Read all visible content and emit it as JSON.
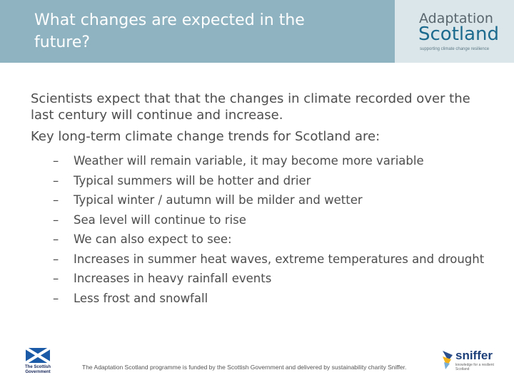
{
  "header": {
    "title": "What changes are expected in the future?",
    "brand_line1": "Adaptation",
    "brand_line2": "Scotland",
    "brand_tagline": "supporting climate change resilience",
    "colors": {
      "band": "#8fb3c0",
      "logo_panel": "#dbe6ea",
      "brand_blue": "#1c6b8e"
    }
  },
  "body": {
    "intro": "Scientists expect that that the changes in climate recorded over the last century will continue and increase.",
    "lead": "Key long-term climate change trends for Scotland are:",
    "bullet_marker": "–",
    "bullets": [
      "Weather will remain variable, it may become more variable",
      "Typical summers will be hotter and drier",
      "Typical winter / autumn will be milder and wetter",
      "Sea level will continue to rise",
      "We can also expect to see:",
      "Increases in summer heat waves, extreme temperatures and drought",
      "Increases in heavy rainfall events",
      "Less frost and snowfall"
    ]
  },
  "footer": {
    "credit": "The Adaptation Scotland programme is funded by the Scottish Government and delivered by sustainability charity Sniffer.",
    "gov_logo_text_line1": "The Scottish",
    "gov_logo_text_line2": "Government",
    "sniffer_name": "sniffer",
    "sniffer_tagline": "knowledge for a resilient Scotland"
  }
}
